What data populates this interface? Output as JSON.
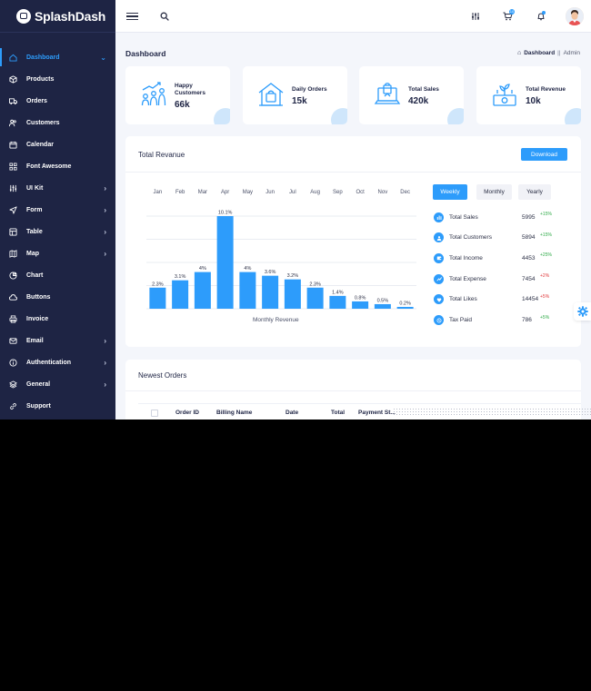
{
  "brand": {
    "name": "SplashDash"
  },
  "sidebar": {
    "items": [
      {
        "label": "Dashboard",
        "icon": "home-icon",
        "chevron": "down",
        "active": true
      },
      {
        "label": "Products",
        "icon": "box-icon",
        "chevron": ""
      },
      {
        "label": "Orders",
        "icon": "truck-icon",
        "chevron": ""
      },
      {
        "label": "Customers",
        "icon": "users-icon",
        "chevron": ""
      },
      {
        "label": "Calendar",
        "icon": "calendar-icon",
        "chevron": ""
      },
      {
        "label": "Font Awesome",
        "icon": "grid-icon",
        "chevron": ""
      },
      {
        "label": "UI Kit",
        "icon": "sliders-icon",
        "chevron": "right"
      },
      {
        "label": "Form",
        "icon": "send-icon",
        "chevron": "right"
      },
      {
        "label": "Table",
        "icon": "table-icon",
        "chevron": "right"
      },
      {
        "label": "Map",
        "icon": "map-icon",
        "chevron": "right"
      },
      {
        "label": "Chart",
        "icon": "pie-chart-icon",
        "chevron": ""
      },
      {
        "label": "Buttons",
        "icon": "cloud-icon",
        "chevron": ""
      },
      {
        "label": "Invoice",
        "icon": "printer-icon",
        "chevron": ""
      },
      {
        "label": "Email",
        "icon": "mail-icon",
        "chevron": "right"
      },
      {
        "label": "Authentication",
        "icon": "info-icon",
        "chevron": "right"
      },
      {
        "label": "General",
        "icon": "layers-icon",
        "chevron": "right"
      },
      {
        "label": "Support",
        "icon": "link-icon",
        "chevron": ""
      }
    ]
  },
  "header": {
    "cart_badge": "10"
  },
  "page": {
    "title": "Dashboard",
    "breadcrumb": {
      "parent": "Dashboard",
      "separator": "||",
      "current": "Admin"
    }
  },
  "stats": [
    {
      "label": "Happy Customers",
      "value": "66k",
      "icon": "growth-people-icon"
    },
    {
      "label": "Daily Orders",
      "value": "15k",
      "icon": "shop-house-icon"
    },
    {
      "label": "Total Sales",
      "value": "420k",
      "icon": "laptop-sales-icon"
    },
    {
      "label": "Total Revenue",
      "value": "10k",
      "icon": "money-plant-icon"
    }
  ],
  "revenue": {
    "title": "Total Revanue",
    "download_label": "Download",
    "tabs": [
      "Weekly",
      "Monthly",
      "Yearly"
    ],
    "metrics": [
      {
        "label": "Total Sales",
        "value": "5995",
        "change": "+15%",
        "direction": "up",
        "icon": "bar-chart-icon"
      },
      {
        "label": "Total Customers",
        "value": "5894",
        "change": "+15%",
        "direction": "up",
        "icon": "users-icon"
      },
      {
        "label": "Total Income",
        "value": "4453",
        "change": "+25%",
        "direction": "up",
        "icon": "wallet-icon"
      },
      {
        "label": "Total Expense",
        "value": "7454",
        "change": "+2%",
        "direction": "down",
        "icon": "trend-icon"
      },
      {
        "label": "Total Likes",
        "value": "14454",
        "change": "+5%",
        "direction": "down",
        "icon": "heart-icon"
      },
      {
        "label": "Tax Paid",
        "value": "786",
        "change": "+5%",
        "direction": "up",
        "icon": "tax-icon"
      }
    ]
  },
  "chart_data": {
    "type": "bar",
    "categories": [
      "Jan",
      "Feb",
      "Mar",
      "Apr",
      "May",
      "Jun",
      "Jul",
      "Aug",
      "Sep",
      "Oct",
      "Nov",
      "Dec"
    ],
    "values": [
      2.3,
      3.1,
      4,
      10.1,
      4,
      3.6,
      3.2,
      2.3,
      1.4,
      0.8,
      0.5,
      0.2
    ],
    "data_labels": [
      "2.3%",
      "3.1%",
      "4%",
      "10.1%",
      "4%",
      "3.6%",
      "3.2%",
      "2.3%",
      "1.4%",
      "0.8%",
      "0.5%",
      "0.2%"
    ],
    "xlabel": "Monthly Revenue",
    "ylim": [
      0,
      10.1
    ],
    "grid": true,
    "bar_color": "#2d9cfb"
  },
  "orders": {
    "title": "Newest Orders",
    "columns": [
      "Order ID",
      "Billing Name",
      "Date",
      "Total",
      "Payment St..."
    ]
  }
}
